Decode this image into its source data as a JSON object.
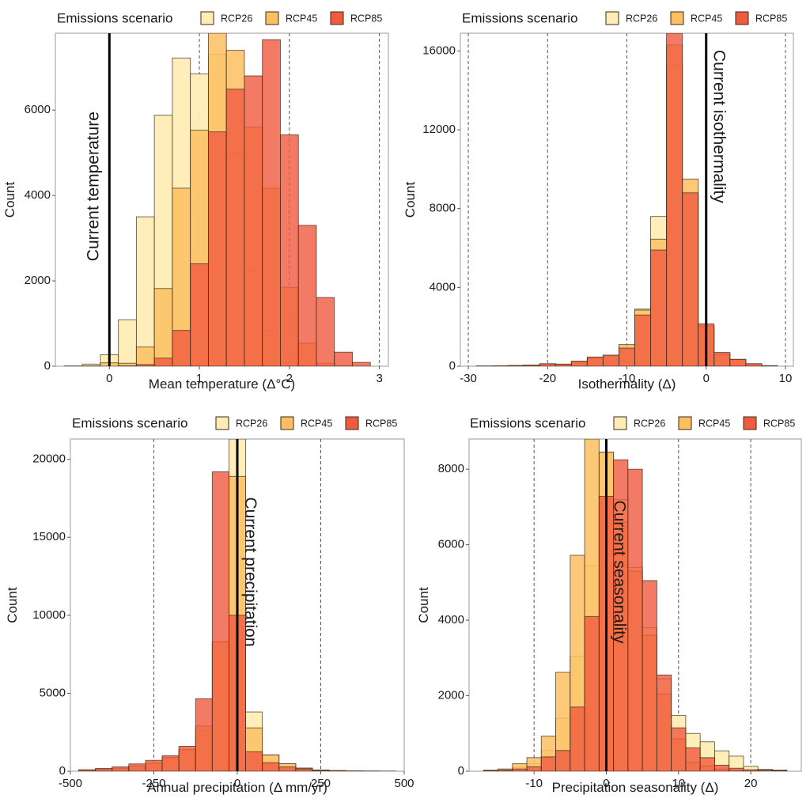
{
  "colors": {
    "RCP26": "#FFEDB5",
    "RCP45": "#FDBF62",
    "RCP85": "#F05A3E",
    "overlap": "#F26538",
    "bar_outline": "#3a2a1a",
    "current_line": "#000000",
    "guide_line": "#555555",
    "frame": "#9a9a9a"
  },
  "legend": {
    "title": "Emissions scenario",
    "entries": [
      "RCP26",
      "RCP45",
      "RCP85"
    ]
  },
  "chart_data": [
    {
      "type": "bar",
      "id": "temperature",
      "title": "",
      "xlabel": "Mean temperature  (Δ°C)",
      "ylabel": "Count",
      "xlim": [
        -0.6,
        3.1
      ],
      "ylim": [
        0,
        7800
      ],
      "xticks": [
        0,
        1,
        2,
        3
      ],
      "xtick_labels": [
        "0",
        "1",
        "2",
        "3"
      ],
      "yticks": [
        0,
        2000,
        4000,
        6000
      ],
      "ytick_labels": [
        "0",
        "2000",
        "4000",
        "6000"
      ],
      "bin_width": 0.2,
      "current_value": 0,
      "current_label": "Current temperature",
      "label_side": "left",
      "guide_lines": [
        1,
        2,
        3
      ],
      "bin_centers": [
        -0.4,
        -0.2,
        0.0,
        0.2,
        0.4,
        0.6,
        0.8,
        1.0,
        1.2,
        1.4,
        1.6,
        1.8,
        2.0,
        2.2,
        2.4,
        2.6,
        2.8
      ],
      "series": [
        {
          "name": "RCP26",
          "values": [
            10,
            50,
            270,
            1090,
            3500,
            5880,
            7220,
            6850,
            7300,
            5000,
            2250,
            820,
            80,
            10,
            0,
            0,
            0
          ]
        },
        {
          "name": "RCP45",
          "values": [
            0,
            10,
            80,
            70,
            450,
            1820,
            4170,
            5530,
            7850,
            7400,
            5600,
            4170,
            1850,
            540,
            70,
            10,
            0
          ]
        },
        {
          "name": "RCP85",
          "values": [
            0,
            0,
            0,
            10,
            40,
            190,
            840,
            2400,
            5490,
            6490,
            6800,
            7650,
            5420,
            3300,
            1610,
            330,
            90
          ]
        }
      ]
    },
    {
      "type": "bar",
      "id": "isothermality",
      "title": "",
      "xlabel": "Isothermality  (Δ)",
      "ylabel": "Count",
      "xlim": [
        -31,
        11
      ],
      "ylim": [
        0,
        16900
      ],
      "xticks": [
        -30,
        -20,
        -10,
        0,
        10
      ],
      "xtick_labels": [
        "-30",
        "-20",
        "-10",
        "0",
        "10"
      ],
      "yticks": [
        0,
        4000,
        8000,
        12000,
        16000
      ],
      "ytick_labels": [
        "0",
        "4000",
        "8000",
        "12000",
        "16000"
      ],
      "bin_width": 2,
      "current_value": 0,
      "current_label": "Current isothermality",
      "label_side": "right",
      "guide_lines": [
        -30,
        -20,
        -10,
        10
      ],
      "bin_centers": [
        -28,
        -26,
        -24,
        -22,
        -20,
        -18,
        -16,
        -14,
        -12,
        -10,
        -8,
        -6,
        -4,
        -2,
        0,
        2,
        4,
        6,
        8
      ],
      "series": [
        {
          "name": "RCP26",
          "values": [
            10,
            20,
            30,
            50,
            90,
            80,
            200,
            380,
            520,
            1020,
            2900,
            7600,
            15300,
            8700,
            1950,
            580,
            330,
            110,
            20
          ]
        },
        {
          "name": "RCP45",
          "values": [
            10,
            20,
            30,
            50,
            110,
            90,
            230,
            420,
            560,
            1100,
            2850,
            6450,
            16300,
            9500,
            2050,
            620,
            350,
            120,
            20
          ]
        },
        {
          "name": "RCP85",
          "values": [
            10,
            20,
            40,
            60,
            130,
            110,
            260,
            470,
            560,
            920,
            2600,
            5900,
            17000,
            8800,
            2150,
            700,
            350,
            130,
            30
          ]
        }
      ]
    },
    {
      "type": "bar",
      "id": "precipitation",
      "title": "",
      "xlabel": "Annual precipitation  (Δ mm/yr)",
      "ylabel": "Count",
      "xlim": [
        -500,
        500
      ],
      "ylim": [
        0,
        21300
      ],
      "xticks": [
        -500,
        -250,
        0,
        250,
        500
      ],
      "xtick_labels": [
        "-500",
        "-250",
        "0",
        "250",
        "500"
      ],
      "yticks": [
        0,
        5000,
        10000,
        15000,
        20000
      ],
      "ytick_labels": [
        "0",
        "5000",
        "10000",
        "15000",
        "20000"
      ],
      "bin_width": 50,
      "current_value": 0,
      "current_label": "Current precipitation",
      "label_side": "right",
      "guide_lines": [
        -250,
        250
      ],
      "bin_centers": [
        -450,
        -400,
        -350,
        -300,
        -250,
        -200,
        -150,
        -100,
        -50,
        0,
        50,
        100,
        150,
        200,
        250,
        300,
        350,
        400,
        450
      ],
      "series": [
        {
          "name": "RCP26",
          "values": [
            50,
            100,
            180,
            320,
            500,
            800,
            1300,
            2600,
            8300,
            21500,
            3800,
            1050,
            480,
            200,
            80,
            40,
            20,
            10,
            5
          ]
        },
        {
          "name": "RCP45",
          "values": [
            60,
            120,
            200,
            350,
            530,
            900,
            1400,
            2900,
            8300,
            18900,
            2780,
            1050,
            480,
            200,
            80,
            40,
            20,
            10,
            5
          ]
        },
        {
          "name": "RCP85",
          "values": [
            100,
            180,
            280,
            470,
            700,
            1000,
            1600,
            4650,
            19200,
            10000,
            1250,
            550,
            280,
            150,
            60,
            30,
            15,
            10,
            5
          ]
        }
      ]
    },
    {
      "type": "bar",
      "id": "seasonality",
      "title": "",
      "xlabel": "Precipitation seasonality  (Δ)",
      "ylabel": "Count",
      "xlim": [
        -19,
        27
      ],
      "ylim": [
        0,
        8800
      ],
      "xticks": [
        -10,
        0,
        10,
        20
      ],
      "xtick_labels": [
        "-10",
        "0",
        "10",
        "20"
      ],
      "yticks": [
        0,
        2000,
        4000,
        6000,
        8000
      ],
      "ytick_labels": [
        "0",
        "2000",
        "4000",
        "6000",
        "8000"
      ],
      "bin_width": 2,
      "current_value": 0,
      "current_label": "Current seasonality",
      "label_side": "right",
      "guide_lines": [
        -10,
        10,
        20
      ],
      "bin_centers": [
        -16,
        -14,
        -12,
        -10,
        -8,
        -6,
        -4,
        -2,
        0,
        2,
        4,
        6,
        8,
        10,
        12,
        14,
        16,
        18,
        20,
        22,
        24
      ],
      "series": [
        {
          "name": "RCP26",
          "values": [
            20,
            40,
            100,
            200,
            550,
            1400,
            3050,
            5450,
            8450,
            7200,
            5400,
            3800,
            2450,
            1480,
            1000,
            780,
            540,
            400,
            130,
            50,
            30
          ]
        },
        {
          "name": "RCP45",
          "values": [
            30,
            60,
            200,
            360,
            930,
            2620,
            5720,
            9000,
            8450,
            6600,
            5300,
            3600,
            2050,
            860,
            240,
            140,
            60,
            30,
            10,
            10,
            10
          ]
        },
        {
          "name": "RCP85",
          "values": [
            10,
            30,
            60,
            120,
            380,
            550,
            1700,
            4100,
            7280,
            8250,
            8000,
            5050,
            2550,
            1150,
            620,
            360,
            160,
            80,
            40,
            30,
            20
          ]
        }
      ]
    }
  ]
}
